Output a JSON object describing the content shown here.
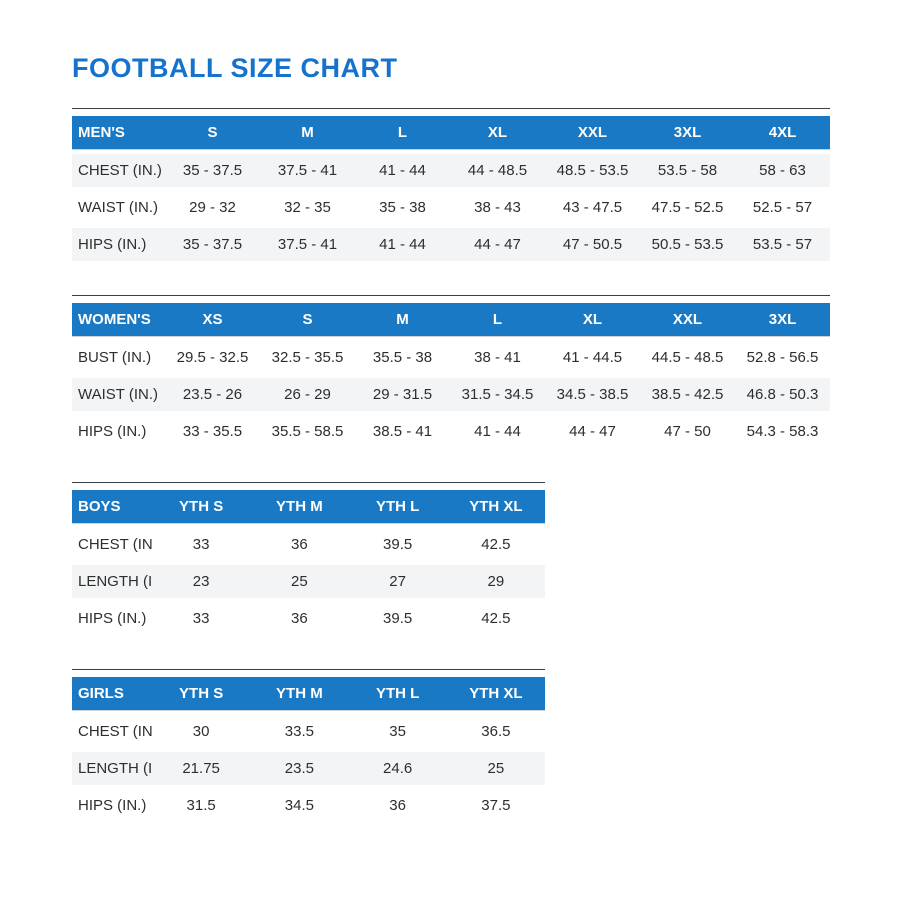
{
  "page": {
    "title": "FOOTBALL SIZE CHART"
  },
  "colors": {
    "title_blue": "#1673cd",
    "header_blue": "#1a79c4",
    "stripe_gray": "#f3f4f5",
    "text_dark": "#2e2e2e",
    "table_top_rule": "#3f3f3f"
  },
  "tables": [
    {
      "id": "mens",
      "stripe": "odd",
      "header": [
        "MEN'S",
        "S",
        "M",
        "L",
        "XL",
        "XXL",
        "3XL",
        "4XL"
      ],
      "rows": [
        {
          "label": "CHEST (IN.)",
          "values": [
            "35 - 37.5",
            "37.5 - 41",
            "41 - 44",
            "44 - 48.5",
            "48.5 - 53.5",
            "53.5 - 58",
            "58 - 63"
          ]
        },
        {
          "label": "WAIST (IN.)",
          "values": [
            "29 - 32",
            "32 - 35",
            "35 - 38",
            "38 - 43",
            "43 - 47.5",
            "47.5 - 52.5",
            "52.5 - 57"
          ]
        },
        {
          "label": "HIPS (IN.)",
          "values": [
            "35 - 37.5",
            "37.5 - 41",
            "41 - 44",
            "44 - 47",
            "47 - 50.5",
            "50.5 - 53.5",
            "53.5 - 57"
          ]
        }
      ]
    },
    {
      "id": "womens",
      "stripe": "even",
      "header": [
        "WOMEN'S",
        "XS",
        "S",
        "M",
        "L",
        "XL",
        "XXL",
        "3XL"
      ],
      "rows": [
        {
          "label": "BUST (IN.)",
          "values": [
            "29.5 - 32.5",
            "32.5 - 35.5",
            "35.5 - 38",
            "38 - 41",
            "41 - 44.5",
            "44.5 - 48.5",
            "52.8 - 56.5"
          ]
        },
        {
          "label": "WAIST (IN.)",
          "values": [
            "23.5 - 26",
            "26 - 29",
            "29 - 31.5",
            "31.5 - 34.5",
            "34.5 - 38.5",
            "38.5 - 42.5",
            "46.8 - 50.3"
          ]
        },
        {
          "label": "HIPS (IN.)",
          "values": [
            "33 - 35.5",
            "35.5 - 58.5",
            "38.5 - 41",
            "41 - 44",
            "44 - 47",
            "47 - 50",
            "54.3 - 58.3"
          ]
        }
      ]
    },
    {
      "id": "boys",
      "stripe": "even",
      "header": [
        "BOYS",
        "YTH S",
        "YTH M",
        "YTH L",
        "YTH XL"
      ],
      "rows": [
        {
          "label": "CHEST (IN.)",
          "values": [
            "33",
            "36",
            "39.5",
            "42.5"
          ]
        },
        {
          "label": "LENGTH (IN.)",
          "values": [
            "23",
            "25",
            "27",
            "29"
          ]
        },
        {
          "label": "HIPS (IN.)",
          "values": [
            "33",
            "36",
            "39.5",
            "42.5"
          ]
        }
      ]
    },
    {
      "id": "girls",
      "stripe": "even",
      "header": [
        "GIRLS",
        "YTH S",
        "YTH M",
        "YTH L",
        "YTH XL"
      ],
      "rows": [
        {
          "label": "CHEST (IN.)",
          "values": [
            "30",
            "33.5",
            "35",
            "36.5"
          ]
        },
        {
          "label": "LENGTH (IN.)",
          "values": [
            "21.75",
            "23.5",
            "24.6",
            "25"
          ]
        },
        {
          "label": "HIPS (IN.)",
          "values": [
            "31.5",
            "34.5",
            "36",
            "37.5"
          ]
        }
      ]
    }
  ]
}
